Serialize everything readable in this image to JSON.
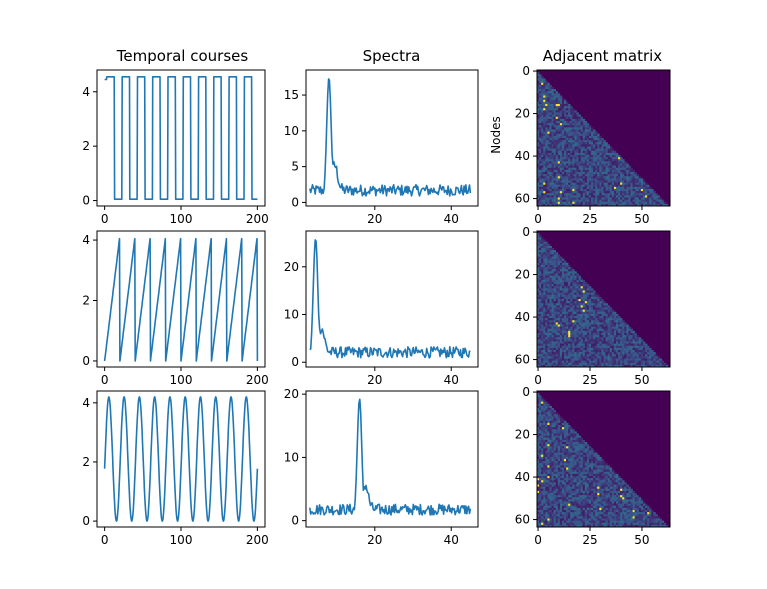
{
  "titles": {
    "temporal": "Temporal courses",
    "spectra": "Spectra",
    "adjacency": "Adjacent matrix"
  },
  "adjacency_ylabel": "Nodes",
  "colors": {
    "line": "#1f77b4",
    "bg": "#ffffff",
    "upper": "#440154"
  },
  "chart_data": [
    {
      "id": "temporal-0",
      "type": "line",
      "title": "Temporal courses",
      "signal": "square",
      "x_range": [
        0,
        200
      ],
      "ylim": [
        -0.2,
        4.8
      ],
      "period": 20,
      "min": 0.05,
      "max": 4.55,
      "xticks": [
        0,
        100,
        200
      ],
      "yticks": [
        0,
        2,
        4
      ]
    },
    {
      "id": "temporal-1",
      "type": "line",
      "signal": "sawtooth",
      "x_range": [
        0,
        200
      ],
      "ylim": [
        -0.2,
        4.3
      ],
      "period": 20,
      "min": 0.0,
      "max": 4.15,
      "xticks": [
        0,
        100,
        200
      ],
      "yticks": [
        0,
        2,
        4
      ]
    },
    {
      "id": "temporal-2",
      "type": "line",
      "signal": "sine",
      "x_range": [
        0,
        200
      ],
      "ylim": [
        -0.2,
        4.4
      ],
      "period": 20,
      "center": 2.1,
      "amplitude": 2.1,
      "xticks": [
        0,
        100,
        200
      ],
      "yticks": [
        0,
        2,
        4
      ]
    },
    {
      "id": "spectrum-0",
      "type": "line",
      "title": "Spectra",
      "x_range": [
        3,
        45
      ],
      "xlim": [
        2,
        47
      ],
      "ylim": [
        -0.5,
        18.5
      ],
      "peak_x": 8,
      "peak_y": 17.5,
      "xticks": [
        20,
        40
      ],
      "yticks": [
        0,
        5,
        10,
        15
      ]
    },
    {
      "id": "spectrum-1",
      "type": "line",
      "x_range": [
        3,
        45
      ],
      "xlim": [
        2,
        47
      ],
      "ylim": [
        -1,
        27.5
      ],
      "peak_x": 4.5,
      "peak_y": 26,
      "xticks": [
        20,
        40
      ],
      "yticks": [
        0,
        10,
        20
      ]
    },
    {
      "id": "spectrum-2",
      "type": "line",
      "x_range": [
        3,
        45
      ],
      "xlim": [
        2,
        47
      ],
      "ylim": [
        -1,
        20.5
      ],
      "peak_x": 16,
      "peak_y": 19.3,
      "xticks": [
        20,
        40
      ],
      "yticks": [
        0,
        10,
        20
      ]
    },
    {
      "id": "adjacency-0",
      "type": "heatmap",
      "title": "Adjacent matrix",
      "ylabel": "Nodes",
      "size": 64,
      "xticks": [
        0,
        25,
        50
      ],
      "yticks": [
        0,
        20,
        40,
        60
      ],
      "hot_cells": [
        [
          6,
          2
        ],
        [
          12,
          3
        ],
        [
          14,
          3
        ],
        [
          16,
          4
        ],
        [
          18,
          3
        ],
        [
          16,
          9
        ],
        [
          16,
          10
        ],
        [
          22,
          9
        ],
        [
          25,
          11
        ],
        [
          29,
          5
        ],
        [
          43,
          10
        ],
        [
          50,
          10
        ],
        [
          53,
          3
        ],
        [
          57,
          3
        ],
        [
          60,
          10
        ],
        [
          62,
          10
        ],
        [
          57,
          11
        ],
        [
          41,
          39
        ],
        [
          53,
          40
        ],
        [
          55,
          37
        ],
        [
          56,
          50
        ],
        [
          59,
          52
        ],
        [
          62,
          17
        ],
        [
          56,
          17
        ]
      ]
    },
    {
      "id": "adjacency-1",
      "type": "heatmap",
      "size": 64,
      "xticks": [
        0,
        25,
        50
      ],
      "yticks": [
        0,
        20,
        40,
        60
      ],
      "hot_cells": [
        [
          26,
          21
        ],
        [
          28,
          22
        ],
        [
          32,
          20
        ],
        [
          35,
          21
        ],
        [
          33,
          23
        ],
        [
          37,
          22
        ],
        [
          42,
          17
        ],
        [
          47,
          15
        ],
        [
          48,
          15
        ],
        [
          49,
          15
        ],
        [
          43,
          9
        ],
        [
          44,
          10
        ]
      ]
    },
    {
      "id": "adjacency-2",
      "type": "heatmap",
      "size": 64,
      "xticks": [
        0,
        25,
        50
      ],
      "yticks": [
        0,
        20,
        40,
        60
      ],
      "hot_cells": [
        [
          5,
          2
        ],
        [
          8,
          11
        ],
        [
          10,
          12
        ],
        [
          15,
          5
        ],
        [
          17,
          12
        ],
        [
          25,
          5
        ],
        [
          26,
          14
        ],
        [
          30,
          2
        ],
        [
          32,
          13
        ],
        [
          35,
          5
        ],
        [
          36,
          14
        ],
        [
          40,
          5
        ],
        [
          41,
          0
        ],
        [
          42,
          2
        ],
        [
          44,
          0
        ],
        [
          45,
          29
        ],
        [
          46,
          40
        ],
        [
          47,
          0
        ],
        [
          48,
          29
        ],
        [
          49,
          40
        ],
        [
          53,
          15
        ],
        [
          55,
          30
        ],
        [
          56,
          46
        ],
        [
          59,
          46
        ],
        [
          60,
          5
        ],
        [
          62,
          2
        ],
        [
          57,
          53
        ],
        [
          51,
          52
        ],
        [
          50,
          41
        ]
      ]
    }
  ]
}
